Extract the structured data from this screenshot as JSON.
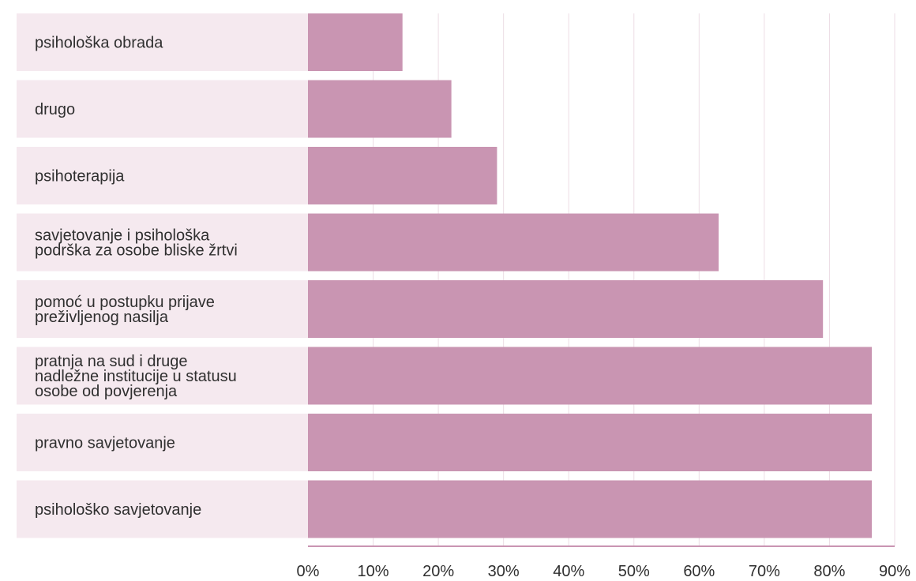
{
  "chart_data": {
    "type": "bar",
    "orientation": "horizontal",
    "categories": [
      [
        "psihološka obrada"
      ],
      [
        "drugo"
      ],
      [
        "psihoterapija"
      ],
      [
        "savjetovanje i psihološka",
        "podrška za osobe bliske žrtvi"
      ],
      [
        "pomoć u postupku prijave",
        "preživljenog nasilja"
      ],
      [
        "pratnja na sud i druge",
        "nadležne institucije u statusu",
        "osobe od povjerenja"
      ],
      [
        "pravno savjetovanje"
      ],
      [
        "psihološko savjetovanje"
      ]
    ],
    "values": [
      14.5,
      22,
      29,
      63,
      79,
      86.5,
      86.5,
      86.5
    ],
    "xlim": [
      0,
      90
    ],
    "ticks": [
      0,
      10,
      20,
      30,
      40,
      50,
      60,
      70,
      80,
      90
    ],
    "tick_labels": [
      "0%",
      "10%",
      "20%",
      "30%",
      "40%",
      "50%",
      "60%",
      "70%",
      "80%",
      "90%"
    ],
    "grid": true,
    "title": "",
    "xlabel": "",
    "ylabel": "",
    "colors": {
      "bar": "#c995b2",
      "label_band": "#f5e9ef",
      "grid": "#ecdde5",
      "axis": "#c995b2",
      "text": "#2f2f2f"
    }
  }
}
